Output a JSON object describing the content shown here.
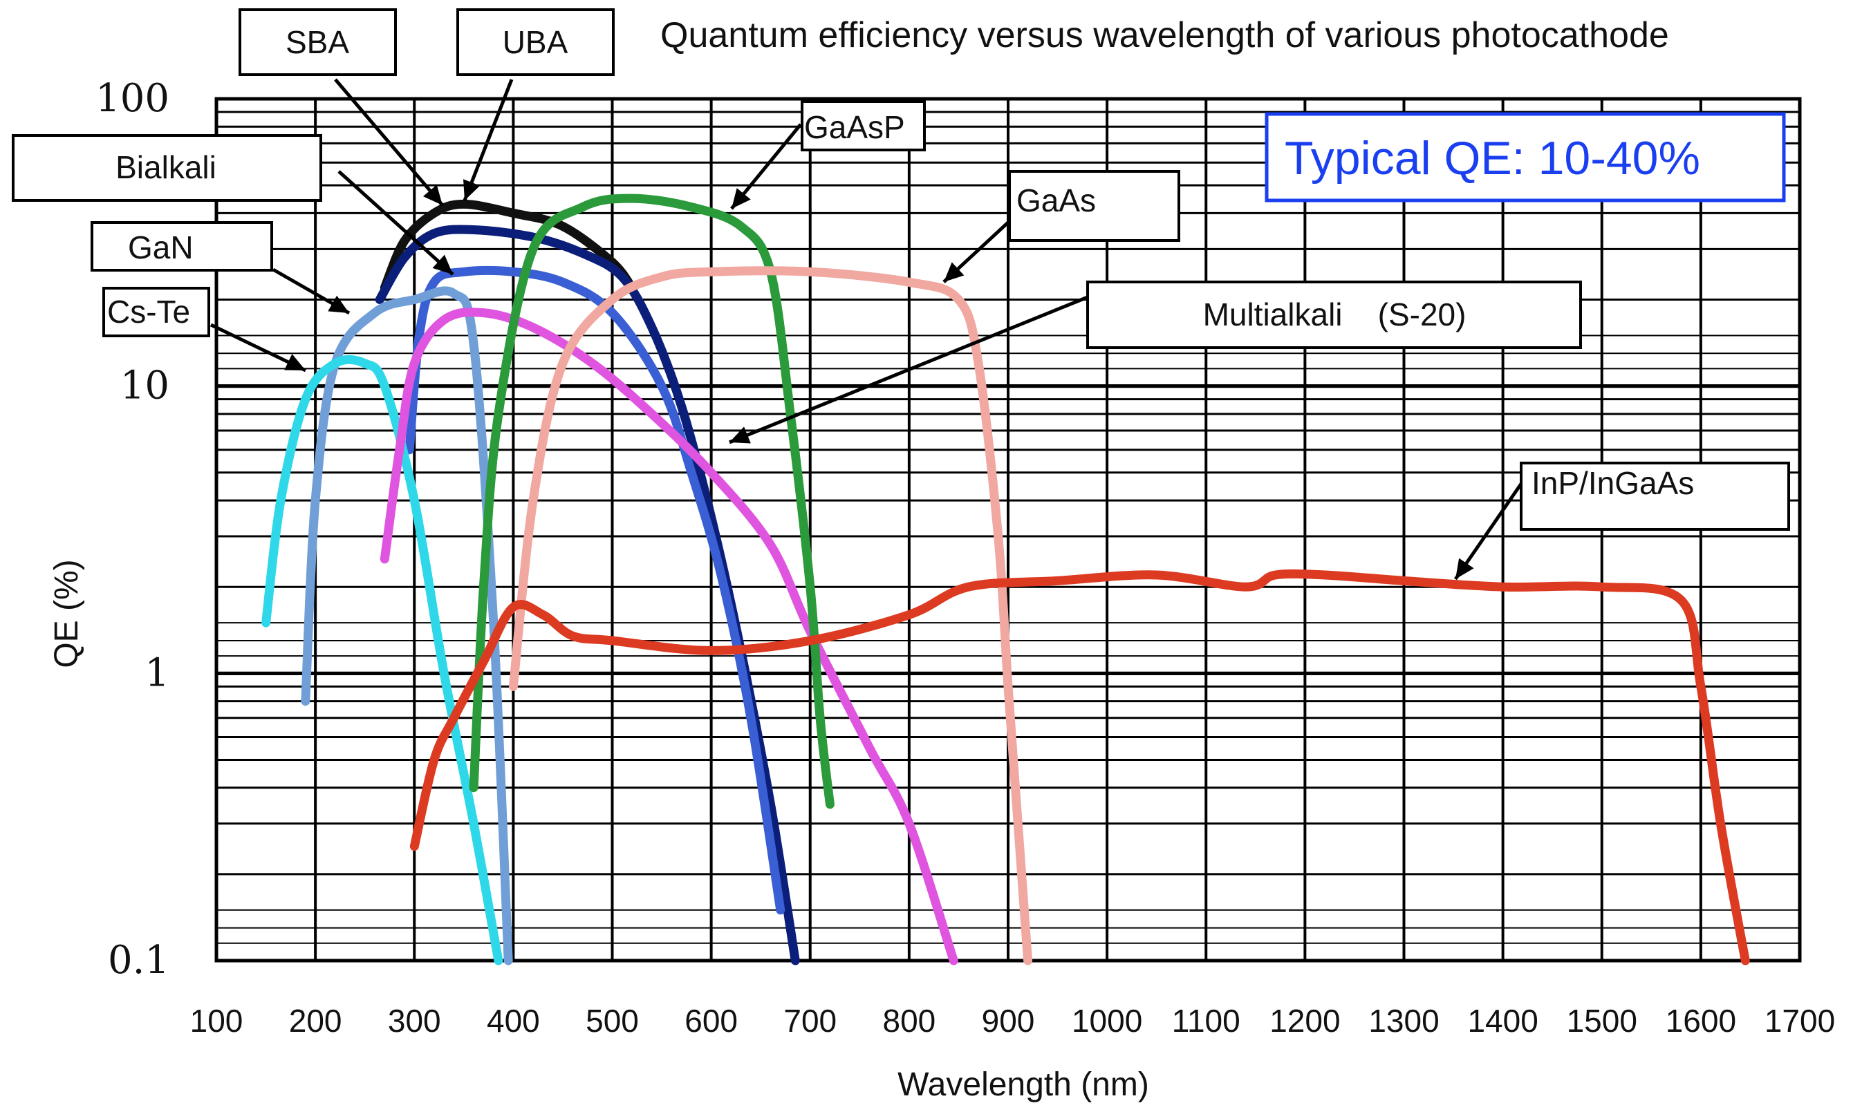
{
  "chart_data": {
    "type": "line",
    "title": "Quantum efficiency versus wavelength of various photocathode",
    "xlabel": "Wavelength (nm)",
    "ylabel": "QE (%)",
    "x_ticks": [
      "100",
      "200",
      "300",
      "400",
      "500",
      "600",
      "700",
      "800",
      "900",
      "1000",
      "1100",
      "1200",
      "1300",
      "1400",
      "1500",
      "1600",
      "1700"
    ],
    "y_ticks": [
      "0.1",
      "1",
      "10",
      "100"
    ],
    "xlim": [
      100,
      1700
    ],
    "ylim": [
      0.1,
      100
    ],
    "y_scale": "log",
    "grid": true,
    "annotation": "Typical QE: 10-40%",
    "annotation_color": "#1a3ff0",
    "series": [
      {
        "name": "SBA",
        "color": "#111111",
        "x": [
          270,
          290,
          320,
          350,
          400,
          450,
          500,
          520
        ],
        "y": [
          22,
          32,
          40,
          43,
          40,
          36,
          27,
          22
        ]
      },
      {
        "name": "UBA",
        "color": "#0b1f7a",
        "x": [
          265,
          290,
          320,
          360,
          420,
          470,
          510,
          540,
          570,
          600,
          630,
          660,
          685
        ],
        "y": [
          20,
          28,
          34,
          35,
          33,
          29,
          24,
          16,
          8.5,
          3.5,
          1.2,
          0.35,
          0.1
        ]
      },
      {
        "name": "Bialkali",
        "color": "#3a5fd4",
        "x": [
          295,
          305,
          320,
          350,
          400,
          450,
          500,
          550,
          580,
          610,
          640,
          670
        ],
        "y": [
          6,
          15,
          23,
          25,
          25,
          23,
          18,
          10,
          5,
          2.2,
          0.7,
          0.15
        ]
      },
      {
        "name": "GaN",
        "color": "#6f9fd6",
        "x": [
          190,
          200,
          220,
          260,
          300,
          340,
          360,
          380,
          395
        ],
        "y": [
          0.8,
          4,
          12,
          18,
          20,
          21,
          14,
          1.5,
          0.1
        ]
      },
      {
        "name": "Cs-Te",
        "color": "#2fd8e8",
        "x": [
          150,
          165,
          190,
          220,
          250,
          270,
          300,
          330,
          360,
          385
        ],
        "y": [
          1.5,
          4,
          9,
          12,
          12,
          10,
          4,
          1,
          0.3,
          0.1
        ]
      },
      {
        "name": "Multialkali (S-20)",
        "color": "#e055e0",
        "x": [
          270,
          285,
          300,
          330,
          370,
          420,
          480,
          540,
          600,
          660,
          700,
          760,
          800,
          845
        ],
        "y": [
          2.5,
          6,
          12,
          17,
          18,
          16,
          12,
          8,
          5,
          2.8,
          1.4,
          0.55,
          0.3,
          0.1
        ]
      },
      {
        "name": "GaAsP",
        "color": "#2a9a3a",
        "x": [
          360,
          370,
          385,
          420,
          470,
          520,
          580,
          630,
          660,
          680,
          700,
          710,
          720
        ],
        "y": [
          0.4,
          2,
          8,
          30,
          42,
          45,
          42,
          36,
          25,
          8,
          2,
          0.7,
          0.35
        ]
      },
      {
        "name": "GaAs",
        "color": "#f0a8a0",
        "x": [
          400,
          420,
          450,
          500,
          550,
          600,
          700,
          800,
          850,
          870,
          890,
          900,
          910,
          920
        ],
        "y": [
          0.9,
          4,
          12,
          20,
          24,
          25,
          25,
          23,
          20,
          12,
          3,
          0.9,
          0.3,
          0.1
        ]
      },
      {
        "name": "InP/InGaAs",
        "color": "#dd3a22",
        "x": [
          300,
          320,
          340,
          370,
          400,
          430,
          460,
          500,
          600,
          700,
          800,
          860,
          950,
          1050,
          1140,
          1170,
          1220,
          1300,
          1400,
          1500,
          1580,
          1600,
          1620,
          1645
        ],
        "y": [
          0.25,
          0.5,
          0.7,
          1.1,
          1.7,
          1.6,
          1.35,
          1.3,
          1.2,
          1.3,
          1.6,
          2.0,
          2.1,
          2.2,
          2.0,
          2.2,
          2.2,
          2.1,
          2.0,
          2.0,
          1.8,
          0.9,
          0.3,
          0.1
        ]
      }
    ],
    "labels": [
      {
        "text": "SBA",
        "series": "SBA"
      },
      {
        "text": "UBA",
        "series": "UBA"
      },
      {
        "text": "Bialkali",
        "series": "Bialkali"
      },
      {
        "text": "GaN",
        "series": "GaN"
      },
      {
        "text": "Cs-Te",
        "series": "Cs-Te"
      },
      {
        "text": "GaAsP",
        "series": "GaAsP"
      },
      {
        "text": "GaAs",
        "series": "GaAs"
      },
      {
        "text": "Multialkali    (S-20)",
        "series": "Multialkali (S-20)"
      },
      {
        "text": "InP/InGaAs",
        "series": "InP/InGaAs"
      }
    ]
  }
}
